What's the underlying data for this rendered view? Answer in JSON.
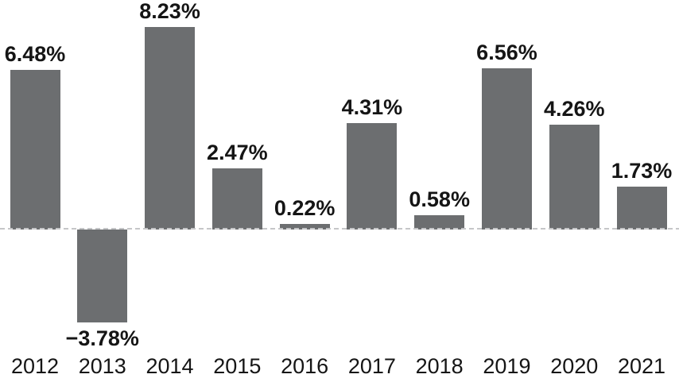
{
  "chart_data": {
    "type": "bar",
    "title": "",
    "xlabel": "",
    "ylabel": "",
    "unit": "percent",
    "categories": [
      "2012",
      "2013",
      "2014",
      "2015",
      "2016",
      "2017",
      "2018",
      "2019",
      "2020",
      "2021"
    ],
    "values": [
      6.48,
      -3.78,
      8.23,
      2.47,
      0.22,
      4.31,
      0.58,
      6.56,
      4.26,
      1.73
    ],
    "value_labels": [
      "6.48%",
      "−3.78%",
      "8.23%",
      "2.47%",
      "0.22%",
      "4.31%",
      "0.58%",
      "6.56%",
      "4.26%",
      "1.73%"
    ],
    "ylim": [
      -4.6,
      8.9
    ],
    "grid": false,
    "legend": false,
    "baseline": {
      "value": 0,
      "style": "dashed"
    },
    "colors": {
      "bar": "#6c6e70",
      "value_label_text": "#151515",
      "axis_label_text": "#151515",
      "zero_baseline": "#c5c6c8",
      "background": "#ffffff"
    }
  }
}
